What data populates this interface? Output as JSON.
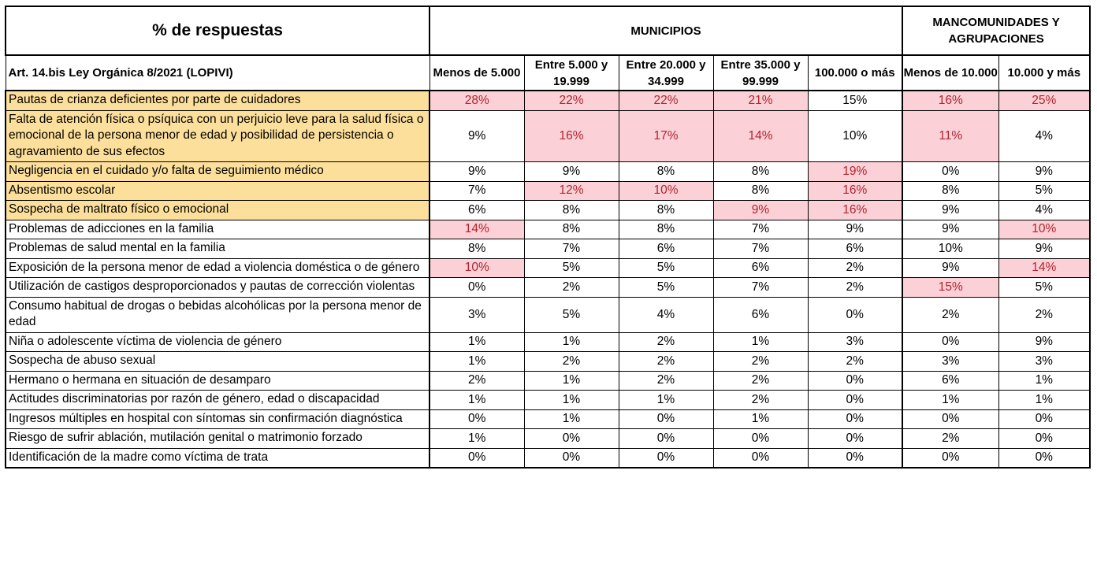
{
  "header": {
    "title": "% de respuestas",
    "group_municipios": "MUNICIPIOS",
    "group_mancomunidades": "MANCOMUNIDADES Y AGRUPACIONES",
    "subheader": "Art. 14.bis Ley Orgánica 8/2021 (LOPIVI)",
    "columns": [
      "Menos de 5.000",
      "Entre 5.000 y 19.999",
      "Entre 20.000 y 34.999",
      "Entre 35.000 y 99.999",
      "100.000 o más",
      "Menos de 10.000",
      "10.000 y más"
    ]
  },
  "colors": {
    "label_highlight": "#fcdf9a",
    "value_highlight_bg": "#fbd0d6",
    "value_highlight_text": "#b0242f"
  },
  "rows": [
    {
      "label": "Pautas de crianza deficientes por parte de cuidadores",
      "label_highlight": true,
      "values": [
        "28%",
        "22%",
        "22%",
        "21%",
        "15%",
        "16%",
        "25%"
      ],
      "highlight": [
        1,
        1,
        1,
        1,
        0,
        1,
        1
      ]
    },
    {
      "label": "Falta de atención física o psíquica con un perjuicio leve para la salud física o emocional de la persona menor de edad y posibilidad de persistencia o agravamiento de sus efectos",
      "label_highlight": true,
      "values": [
        "9%",
        "16%",
        "17%",
        "14%",
        "10%",
        "11%",
        "4%"
      ],
      "highlight": [
        0,
        1,
        1,
        1,
        0,
        1,
        0
      ]
    },
    {
      "label": "Negligencia en el cuidado y/o falta de seguimiento médico",
      "label_highlight": true,
      "values": [
        "9%",
        "9%",
        "8%",
        "8%",
        "19%",
        "0%",
        "9%"
      ],
      "highlight": [
        0,
        0,
        0,
        0,
        1,
        0,
        0
      ]
    },
    {
      "label": "Absentismo escolar",
      "label_highlight": true,
      "values": [
        "7%",
        "12%",
        "10%",
        "8%",
        "16%",
        "8%",
        "5%"
      ],
      "highlight": [
        0,
        1,
        1,
        0,
        1,
        0,
        0
      ]
    },
    {
      "label": "Sospecha de maltrato físico o emocional",
      "label_highlight": true,
      "values": [
        "6%",
        "8%",
        "8%",
        "9%",
        "16%",
        "9%",
        "4%"
      ],
      "highlight": [
        0,
        0,
        0,
        1,
        1,
        0,
        0
      ]
    },
    {
      "label": "Problemas de adicciones en la familia",
      "label_highlight": false,
      "values": [
        "14%",
        "8%",
        "8%",
        "7%",
        "9%",
        "9%",
        "10%"
      ],
      "highlight": [
        1,
        0,
        0,
        0,
        0,
        0,
        1
      ]
    },
    {
      "label": "Problemas de salud mental en la familia",
      "label_highlight": false,
      "values": [
        "8%",
        "7%",
        "6%",
        "7%",
        "6%",
        "10%",
        "9%"
      ],
      "highlight": [
        0,
        0,
        0,
        0,
        0,
        0,
        0
      ]
    },
    {
      "label": "Exposición de la persona menor de edad a violencia doméstica o de género",
      "label_highlight": false,
      "values": [
        "10%",
        "5%",
        "5%",
        "6%",
        "2%",
        "9%",
        "14%"
      ],
      "highlight": [
        1,
        0,
        0,
        0,
        0,
        0,
        1
      ]
    },
    {
      "label": "Utilización de castigos desproporcionados y pautas de corrección violentas",
      "label_highlight": false,
      "values": [
        "0%",
        "2%",
        "5%",
        "7%",
        "2%",
        "15%",
        "5%"
      ],
      "highlight": [
        0,
        0,
        0,
        0,
        0,
        1,
        0
      ]
    },
    {
      "label": "Consumo habitual de drogas o bebidas alcohólicas por la persona menor de edad",
      "label_highlight": false,
      "values": [
        "3%",
        "5%",
        "4%",
        "6%",
        "0%",
        "2%",
        "2%"
      ],
      "highlight": [
        0,
        0,
        0,
        0,
        0,
        0,
        0
      ]
    },
    {
      "label": "Niña o adolescente víctima de violencia de género",
      "label_highlight": false,
      "values": [
        "1%",
        "1%",
        "2%",
        "1%",
        "3%",
        "0%",
        "9%"
      ],
      "highlight": [
        0,
        0,
        0,
        0,
        0,
        0,
        0
      ]
    },
    {
      "label": "Sospecha de abuso sexual",
      "label_highlight": false,
      "values": [
        "1%",
        "2%",
        "2%",
        "2%",
        "2%",
        "3%",
        "3%"
      ],
      "highlight": [
        0,
        0,
        0,
        0,
        0,
        0,
        0
      ]
    },
    {
      "label": "Hermano o hermana en situación de desamparo",
      "label_highlight": false,
      "values": [
        "2%",
        "1%",
        "2%",
        "2%",
        "0%",
        "6%",
        "1%"
      ],
      "highlight": [
        0,
        0,
        0,
        0,
        0,
        0,
        0
      ]
    },
    {
      "label": "Actitudes discriminatorias por razón de género, edad o discapacidad",
      "label_highlight": false,
      "values": [
        "1%",
        "1%",
        "1%",
        "2%",
        "0%",
        "1%",
        "1%"
      ],
      "highlight": [
        0,
        0,
        0,
        0,
        0,
        0,
        0
      ]
    },
    {
      "label": "Ingresos múltiples en hospital con síntomas sin confirmación diagnóstica",
      "label_highlight": false,
      "values": [
        "0%",
        "1%",
        "0%",
        "1%",
        "0%",
        "0%",
        "0%"
      ],
      "highlight": [
        0,
        0,
        0,
        0,
        0,
        0,
        0
      ]
    },
    {
      "label": "Riesgo de sufrir ablación, mutilación genital o matrimonio forzado",
      "label_highlight": false,
      "values": [
        "1%",
        "0%",
        "0%",
        "0%",
        "0%",
        "2%",
        "0%"
      ],
      "highlight": [
        0,
        0,
        0,
        0,
        0,
        0,
        0
      ]
    },
    {
      "label": "Identificación de la madre como víctima de trata",
      "label_highlight": false,
      "values": [
        "0%",
        "0%",
        "0%",
        "0%",
        "0%",
        "0%",
        "0%"
      ],
      "highlight": [
        0,
        0,
        0,
        0,
        0,
        0,
        0
      ]
    }
  ]
}
